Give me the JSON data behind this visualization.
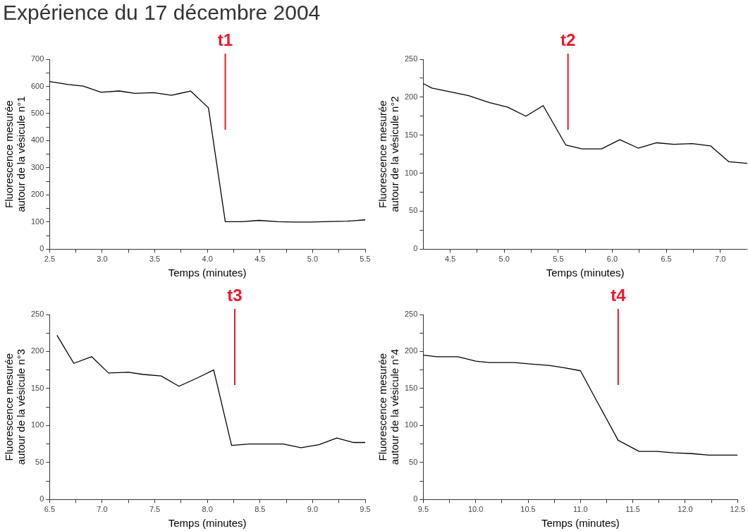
{
  "chart_data": [
    {
      "type": "line",
      "title": "Expérience du 17 décembre 2004",
      "xlabel": "Temps (minutes)",
      "ylabel": "Fluorescence mesurée\nautour de la vésicule n°1",
      "grid": false,
      "x": [
        2.5,
        2.68,
        2.82,
        2.99,
        3.16,
        3.31,
        3.49,
        3.66,
        3.84,
        4.01,
        4.17,
        4.33,
        4.49,
        4.67,
        4.82,
        4.99,
        5.16,
        5.33,
        5.5
      ],
      "series": [
        {
          "color": "#000000",
          "values": [
            618,
            607,
            601,
            578,
            583,
            574,
            577,
            567,
            583,
            521,
            101,
            101,
            106,
            101,
            100,
            100,
            102,
            103,
            108
          ]
        }
      ],
      "xlim": [
        2.5,
        5.5
      ],
      "xticks": [
        2.5,
        {
          "value": 2.75,
          "label": null
        },
        {
          "value": 3,
          "label": "3.0"
        },
        {
          "value": 3.25,
          "label": null
        },
        3.5,
        {
          "value": 3.75,
          "label": null
        },
        {
          "value": 4,
          "label": "4.0"
        },
        {
          "value": 4.25,
          "label": null
        },
        4.5,
        {
          "value": 4.75,
          "label": null
        },
        {
          "value": 5,
          "label": "5.0"
        },
        {
          "value": 5.25,
          "label": null
        },
        5.5
      ],
      "ylim": [
        0,
        700
      ],
      "yticks": [
        0,
        {
          "value": 50,
          "label": null
        },
        100,
        {
          "value": 150,
          "label": null
        },
        200,
        {
          "value": 250,
          "label": null
        },
        300,
        {
          "value": 350,
          "label": null
        },
        400,
        {
          "value": 450,
          "label": null
        },
        500,
        {
          "value": 550,
          "label": null
        },
        600,
        {
          "value": 650,
          "label": null
        },
        700
      ],
      "ref_lines": [
        {
          "axis": "x",
          "value": 4.17,
          "label": "t1",
          "color": "#e8192c"
        }
      ]
    },
    {
      "type": "line",
      "xlabel": "Temps (minutes)",
      "ylabel": "Fluorescence mesurée\nautour de la vésicule n°2",
      "grid": false,
      "x": [
        4.25,
        4.33,
        4.67,
        4.86,
        5.03,
        5.2,
        5.36,
        5.57,
        5.72,
        5.9,
        6.07,
        6.24,
        6.41,
        6.57,
        6.74,
        6.91,
        7.08,
        7.25
      ],
      "series": [
        {
          "color": "#000000",
          "values": [
            218,
            212,
            202,
            193,
            187,
            175,
            189,
            137,
            132,
            132,
            144,
            133,
            140,
            138,
            139,
            136,
            115,
            113
          ]
        }
      ],
      "xlim": [
        4.25,
        7.25
      ],
      "xticks": [
        4.5,
        {
          "value": 4.75,
          "label": null
        },
        {
          "value": 5,
          "label": "5.0"
        },
        {
          "value": 5.25,
          "label": null
        },
        5.5,
        {
          "value": 5.75,
          "label": null
        },
        {
          "value": 6,
          "label": "6.0"
        },
        {
          "value": 6.25,
          "label": null
        },
        6.5,
        {
          "value": 6.75,
          "label": null
        },
        {
          "value": 7,
          "label": "7.0"
        }
      ],
      "ylim": [
        0,
        250
      ],
      "yticks": [
        0,
        {
          "value": 25,
          "label": null
        },
        50,
        {
          "value": 75,
          "label": null
        },
        100,
        {
          "value": 125,
          "label": null
        },
        150,
        {
          "value": 175,
          "label": null
        },
        200,
        {
          "value": 225,
          "label": null
        },
        250
      ],
      "ref_lines": [
        {
          "axis": "x",
          "value": 5.59,
          "label": "t2",
          "color": "#e8192c"
        }
      ]
    },
    {
      "type": "line",
      "xlabel": "Temps (minutes)",
      "ylabel": "Fluorescence mesurée\nautour de la vésicule n°3",
      "grid": false,
      "x": [
        6.57,
        6.73,
        6.9,
        7.06,
        7.25,
        7.39,
        7.56,
        7.73,
        7.9,
        8.06,
        8.23,
        8.4,
        8.55,
        8.72,
        8.89,
        9.06,
        9.23,
        9.39,
        9.5
      ],
      "series": [
        {
          "color": "#000000",
          "values": [
            222,
            184,
            193,
            171,
            172,
            169,
            167,
            153,
            164,
            175,
            73,
            75,
            75,
            75,
            70,
            74,
            83,
            77,
            77
          ]
        }
      ],
      "xlim": [
        6.5,
        9.5
      ],
      "xticks": [
        6.5,
        {
          "value": 6.75,
          "label": null
        },
        {
          "value": 7,
          "label": "7.0"
        },
        {
          "value": 7.25,
          "label": null
        },
        7.5,
        {
          "value": 7.75,
          "label": null
        },
        {
          "value": 8,
          "label": "8.0"
        },
        {
          "value": 8.25,
          "label": null
        },
        8.5,
        {
          "value": 8.75,
          "label": null
        },
        {
          "value": 9,
          "label": "9.0"
        },
        {
          "value": 9.25,
          "label": null
        },
        9.5
      ],
      "ylim": [
        0,
        250
      ],
      "yticks": [
        0,
        {
          "value": 25,
          "label": null
        },
        50,
        {
          "value": 75,
          "label": null
        },
        100,
        {
          "value": 125,
          "label": null
        },
        150,
        {
          "value": 175,
          "label": null
        },
        200,
        {
          "value": 225,
          "label": null
        },
        250
      ],
      "ref_lines": [
        {
          "axis": "x",
          "value": 8.26,
          "label": "t3",
          "color": "#e8192c"
        }
      ]
    },
    {
      "type": "line",
      "xlabel": "Temps (minutes)",
      "ylabel": "Fluorescence mesurée\nautour de la vésicule n°4",
      "grid": false,
      "x": [
        9.5,
        9.63,
        9.83,
        10.0,
        10.13,
        10.37,
        10.54,
        10.71,
        10.85,
        11.0,
        11.16,
        11.36,
        11.56,
        11.73,
        11.89,
        12.06,
        12.23,
        12.5
      ],
      "series": [
        {
          "color": "#000000",
          "values": [
            195,
            193,
            193,
            187,
            185,
            185,
            183,
            181,
            178,
            174,
            132,
            80,
            65,
            65,
            63,
            62,
            60,
            60
          ]
        }
      ],
      "xlim": [
        9.5,
        12.5
      ],
      "xticks": [
        9.5,
        {
          "value": 9.75,
          "label": null
        },
        {
          "value": 10,
          "label": "10.0"
        },
        {
          "value": 10.25,
          "label": null
        },
        10.5,
        {
          "value": 10.75,
          "label": null
        },
        {
          "value": 11,
          "label": "11.0"
        },
        {
          "value": 11.25,
          "label": null
        },
        11.5,
        {
          "value": 11.75,
          "label": null
        },
        {
          "value": 12,
          "label": "12.0"
        },
        {
          "value": 12.25,
          "label": null
        },
        12.5
      ],
      "ylim": [
        0,
        250
      ],
      "yticks": [
        0,
        {
          "value": 25,
          "label": null
        },
        50,
        {
          "value": 75,
          "label": null
        },
        100,
        {
          "value": 125,
          "label": null
        },
        150,
        {
          "value": 175,
          "label": null
        },
        200,
        {
          "value": 225,
          "label": null
        },
        250
      ],
      "ref_lines": [
        {
          "axis": "x",
          "value": 11.36,
          "label": "t4",
          "color": "#e8192c"
        }
      ]
    }
  ]
}
